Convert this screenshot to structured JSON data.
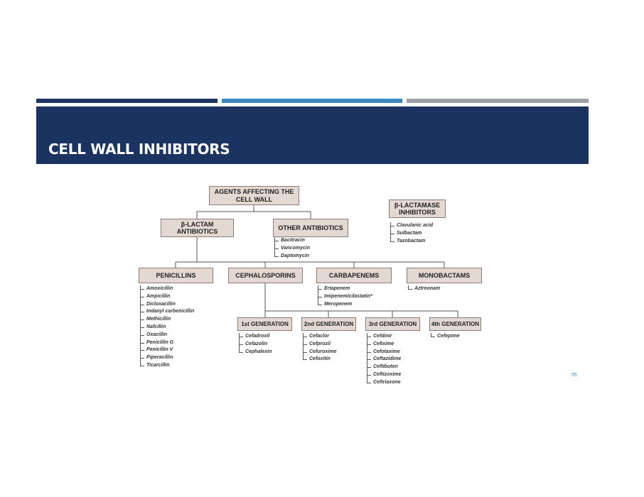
{
  "slide": {
    "title": "CELL WALL INHIBITORS",
    "page_number": "55"
  },
  "colors": {
    "banner": "#1b3360",
    "accent_blue": "#3b87c2",
    "accent_gray": "#9da0a8",
    "box_fill": "#e3d8d2"
  },
  "diagram": {
    "root": "AGENTS AFFECTING THE CELL WALL",
    "inhibitors": {
      "label": "β-LACTAMASE INHIBITORS",
      "items": [
        "Clavulanic acid",
        "Sulbactam",
        "Tazobactam"
      ]
    },
    "beta_lactam": "β-LACTAM ANTIBIOTICS",
    "other": {
      "label": "OTHER ANTIBIOTICS",
      "items": [
        "Bacitracin",
        "Vancomycin",
        "Daptomycin"
      ]
    },
    "penicillins": {
      "label": "PENICILLINS",
      "items": [
        "Amoxicillin",
        "Ampicillin",
        "Dicloxacillin",
        "Indanyl carbenicillin",
        "Methicillin",
        "Nafcillin",
        "Oxacillin",
        "Penicillin G",
        "Penicillin V",
        "Piperacillin",
        "Ticarcillin"
      ]
    },
    "cephalosporins": {
      "label": "CEPHALOSPORINS",
      "generations": [
        {
          "label": "1st GENERATION",
          "items": [
            "Cefadroxil",
            "Cefazolin",
            "Cephalexin"
          ]
        },
        {
          "label": "2nd GENERATION",
          "items": [
            "Cefaclor",
            "Cefprozil",
            "Cefuroxime",
            "Cefoxitin"
          ]
        },
        {
          "label": "3rd GENERATION",
          "items": [
            "Cefdinir",
            "Cefixime",
            "Cefotaxime",
            "Ceftazidime",
            "Ceftibuten",
            "Ceftizoxime",
            "Ceftriaxone"
          ]
        },
        {
          "label": "4th GENERATION",
          "items": [
            "Cefepime"
          ]
        }
      ]
    },
    "carbapenems": {
      "label": "CARBAPENEMS",
      "items": [
        "Ertapenem",
        "Imipenem/cilastatin*",
        "Meropenem"
      ]
    },
    "monobactams": {
      "label": "MONOBACTAMS",
      "items": [
        "Aztreonam"
      ]
    }
  }
}
